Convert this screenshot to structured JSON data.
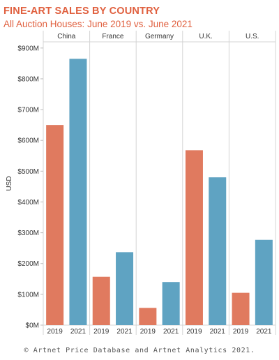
{
  "header": {
    "title": "FINE-ART SALES BY COUNTRY",
    "subtitle": "All Auction Houses: June 2019 vs. June 2021"
  },
  "chart_data": {
    "type": "bar",
    "title": "FINE-ART SALES BY COUNTRY",
    "subtitle": "All Auction Houses: June 2019 vs. June 2021",
    "ylabel": "USD",
    "ylim": [
      0,
      920
    ],
    "yticks": [
      0,
      100,
      200,
      300,
      400,
      500,
      600,
      700,
      800,
      900
    ],
    "ytick_labels": [
      "$0M",
      "$100M",
      "$200M",
      "$300M",
      "$400M",
      "$500M",
      "$600M",
      "$700M",
      "$800M",
      "$900M"
    ],
    "grid": false,
    "panels": [
      {
        "country": "China",
        "bars": [
          {
            "year": "2019",
            "value": 650
          },
          {
            "year": "2021",
            "value": 865
          }
        ]
      },
      {
        "country": "France",
        "bars": [
          {
            "year": "2019",
            "value": 157
          },
          {
            "year": "2021",
            "value": 237
          }
        ]
      },
      {
        "country": "Germany",
        "bars": [
          {
            "year": "2019",
            "value": 56
          },
          {
            "year": "2021",
            "value": 140
          }
        ]
      },
      {
        "country": "U.K.",
        "bars": [
          {
            "year": "2019",
            "value": 568
          },
          {
            "year": "2021",
            "value": 480
          }
        ]
      },
      {
        "country": "U.S.",
        "bars": [
          {
            "year": "2019",
            "value": 105
          },
          {
            "year": "2021",
            "value": 277
          }
        ]
      }
    ],
    "colors": {
      "2019": "#e07a5f",
      "2021": "#5fa3c2"
    }
  },
  "style": {
    "title_color": "#e0603f",
    "subtitle_color": "#e0603f",
    "axis_text_color": "#333333",
    "divider_color": "#d4d4d4"
  },
  "footer": {
    "credit": "© Artnet Price Database and Artnet Analytics 2021."
  }
}
